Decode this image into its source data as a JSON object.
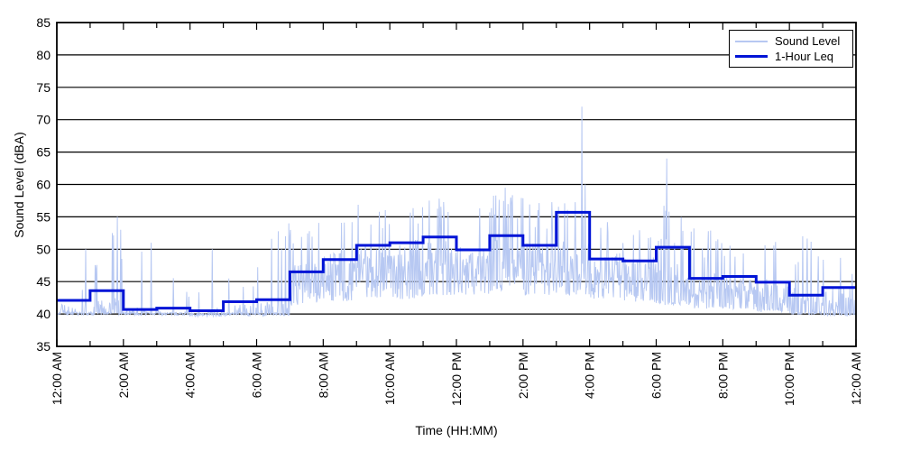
{
  "chart_data": {
    "type": "line",
    "title": "",
    "xlabel": "Time (HH:MM)",
    "ylabel": "Sound Level (dBA)",
    "ylim": [
      35,
      85
    ],
    "yticks": [
      35,
      40,
      45,
      50,
      55,
      60,
      65,
      70,
      75,
      80,
      85
    ],
    "xticks": [
      "12:00 AM",
      "2:00 AM",
      "4:00 AM",
      "6:00 AM",
      "8:00 AM",
      "10:00 AM",
      "12:00 PM",
      "2:00 PM",
      "4:00 PM",
      "6:00 PM",
      "8:00 PM",
      "10:00 PM",
      "12:00 AM"
    ],
    "x_tick_interval_minutes": 120,
    "x_minor_tick_interval_minutes": 60,
    "x_range_minutes": 1440,
    "grid": "horizontal-solid",
    "grid_color": "#000000",
    "axis_color": "#000000",
    "background": "#ffffff",
    "legend_position": "top-right",
    "series": [
      {
        "name": "Sound Level",
        "color": "#b7c8f2",
        "line_width": 1,
        "kind": "noisy-measured",
        "sample_interval_minutes": 1,
        "seed": 7,
        "hourly_noise_profile": [
          {
            "hour": "12 AM",
            "lo": 40.0,
            "hi": 41.5,
            "density": 0.3,
            "spike_p": 0.05,
            "spike_hi": 48.5
          },
          {
            "hour": "1 AM",
            "lo": 40.0,
            "hi": 42.5,
            "density": 0.45,
            "spike_p": 0.13,
            "spike_hi": 54.5
          },
          {
            "hour": "2 AM",
            "lo": 40.0,
            "hi": 41.0,
            "density": 0.18,
            "spike_p": 0.05,
            "spike_hi": 50.0
          },
          {
            "hour": "3 AM",
            "lo": 40.0,
            "hi": 41.0,
            "density": 0.15,
            "spike_p": 0.04,
            "spike_hi": 46.5
          },
          {
            "hour": "4 AM",
            "lo": 39.8,
            "hi": 41.0,
            "density": 0.18,
            "spike_p": 0.05,
            "spike_hi": 48.0
          },
          {
            "hour": "5 AM",
            "lo": 39.9,
            "hi": 41.5,
            "density": 0.3,
            "spike_p": 0.07,
            "spike_hi": 50.0
          },
          {
            "hour": "6 AM",
            "lo": 39.9,
            "hi": 42.0,
            "density": 0.35,
            "spike_p": 0.08,
            "spike_hi": 53.0
          },
          {
            "hour": "7 AM",
            "lo": 41.5,
            "hi": 48.0,
            "density": 0.9,
            "spike_p": 0.1,
            "spike_hi": 55.0
          },
          {
            "hour": "8 AM",
            "lo": 42.0,
            "hi": 49.5,
            "density": 0.92,
            "spike_p": 0.1,
            "spike_hi": 56.5
          },
          {
            "hour": "9 AM",
            "lo": 42.5,
            "hi": 51.0,
            "density": 0.92,
            "spike_p": 0.1,
            "spike_hi": 57.0
          },
          {
            "hour": "10 AM",
            "lo": 42.5,
            "hi": 51.5,
            "density": 0.92,
            "spike_p": 0.1,
            "spike_hi": 57.5
          },
          {
            "hour": "11 AM",
            "lo": 43.0,
            "hi": 52.0,
            "density": 0.92,
            "spike_p": 0.1,
            "spike_hi": 58.0
          },
          {
            "hour": "12 PM",
            "lo": 43.0,
            "hi": 50.5,
            "density": 0.92,
            "spike_p": 0.09,
            "spike_hi": 57.0
          },
          {
            "hour": "1 PM",
            "lo": 43.5,
            "hi": 52.5,
            "density": 0.92,
            "spike_p": 0.1,
            "spike_hi": 59.0
          },
          {
            "hour": "2 PM",
            "lo": 43.0,
            "hi": 51.0,
            "density": 0.92,
            "spike_p": 0.09,
            "spike_hi": 58.0
          },
          {
            "hour": "3 PM",
            "lo": 43.0,
            "hi": 51.5,
            "density": 0.92,
            "spike_p": 0.1,
            "spike_hi": 60.0
          },
          {
            "hour": "4 PM",
            "lo": 42.5,
            "hi": 49.5,
            "density": 0.9,
            "spike_p": 0.09,
            "spike_hi": 56.0
          },
          {
            "hour": "5 PM",
            "lo": 42.0,
            "hi": 49.0,
            "density": 0.9,
            "spike_p": 0.08,
            "spike_hi": 55.5
          },
          {
            "hour": "6 PM",
            "lo": 41.5,
            "hi": 48.0,
            "density": 0.85,
            "spike_p": 0.08,
            "spike_hi": 57.0
          },
          {
            "hour": "7 PM",
            "lo": 41.0,
            "hi": 46.5,
            "density": 0.8,
            "spike_p": 0.07,
            "spike_hi": 53.5
          },
          {
            "hour": "8 PM",
            "lo": 40.8,
            "hi": 46.0,
            "density": 0.75,
            "spike_p": 0.07,
            "spike_hi": 54.5
          },
          {
            "hour": "9 PM",
            "lo": 40.5,
            "hi": 45.5,
            "density": 0.7,
            "spike_p": 0.06,
            "spike_hi": 52.0
          },
          {
            "hour": "10 PM",
            "lo": 40.0,
            "hi": 44.5,
            "density": 0.6,
            "spike_p": 0.06,
            "spike_hi": 52.0
          },
          {
            "hour": "11 PM",
            "lo": 39.8,
            "hi": 44.5,
            "density": 0.55,
            "spike_p": 0.06,
            "spike_hi": 50.0
          }
        ],
        "notable_spikes": [
          {
            "minute": 52,
            "value": 50.0
          },
          {
            "minute": 100,
            "value": 52.5
          },
          {
            "minute": 109,
            "value": 55.0
          },
          {
            "minute": 115,
            "value": 53.0
          },
          {
            "minute": 170,
            "value": 51.0
          },
          {
            "minute": 280,
            "value": 50.0
          },
          {
            "minute": 405,
            "value": 50.0
          },
          {
            "minute": 412,
            "value": 52.0
          },
          {
            "minute": 418,
            "value": 54.0
          },
          {
            "minute": 808,
            "value": 59.5
          },
          {
            "minute": 818,
            "value": 58.0
          },
          {
            "minute": 946,
            "value": 72.0
          },
          {
            "minute": 952,
            "value": 60.0
          },
          {
            "minute": 1099,
            "value": 64.0
          },
          {
            "minute": 1344,
            "value": 52.0
          }
        ]
      },
      {
        "name": "1-Hour Leq",
        "color": "#0014d6",
        "line_width": 3,
        "kind": "hourly-step",
        "hourly_values": [
          42.1,
          43.6,
          40.7,
          40.9,
          40.5,
          41.9,
          42.2,
          46.5,
          48.4,
          50.6,
          51.0,
          51.9,
          49.9,
          52.1,
          50.6,
          55.7,
          48.5,
          48.2,
          50.3,
          45.5,
          45.8,
          44.9,
          42.9,
          44.1
        ]
      }
    ]
  },
  "legend": {
    "entries": [
      {
        "label": "Sound Level"
      },
      {
        "label": "1-Hour Leq"
      }
    ]
  }
}
